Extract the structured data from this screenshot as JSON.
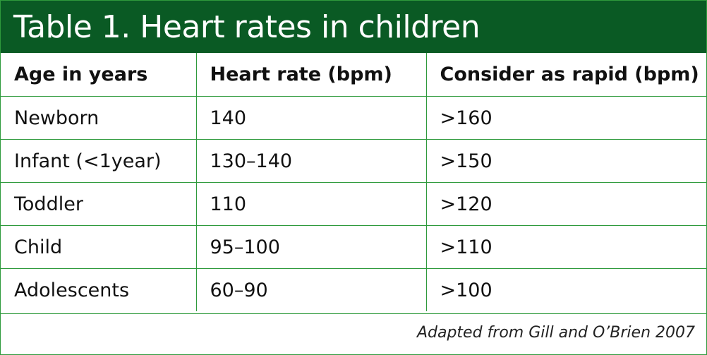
{
  "title": "Table 1. Heart rates in children",
  "headers": [
    "Age in years",
    "Heart rate (bpm)",
    "Consider as rapid (bpm)"
  ],
  "rows": [
    [
      "Newborn",
      "140",
      ">160"
    ],
    [
      "Infant (<1year)",
      "130–140",
      ">150"
    ],
    [
      "Toddler",
      "110",
      ">120"
    ],
    [
      "Child",
      "95–100",
      ">110"
    ],
    [
      "Adolescents",
      "60–90",
      ">100"
    ]
  ],
  "source": "Adapted from Gill and O’Brien 2007",
  "colors": {
    "title_bar": "#0a5a24",
    "border": "#2e9a3c"
  }
}
